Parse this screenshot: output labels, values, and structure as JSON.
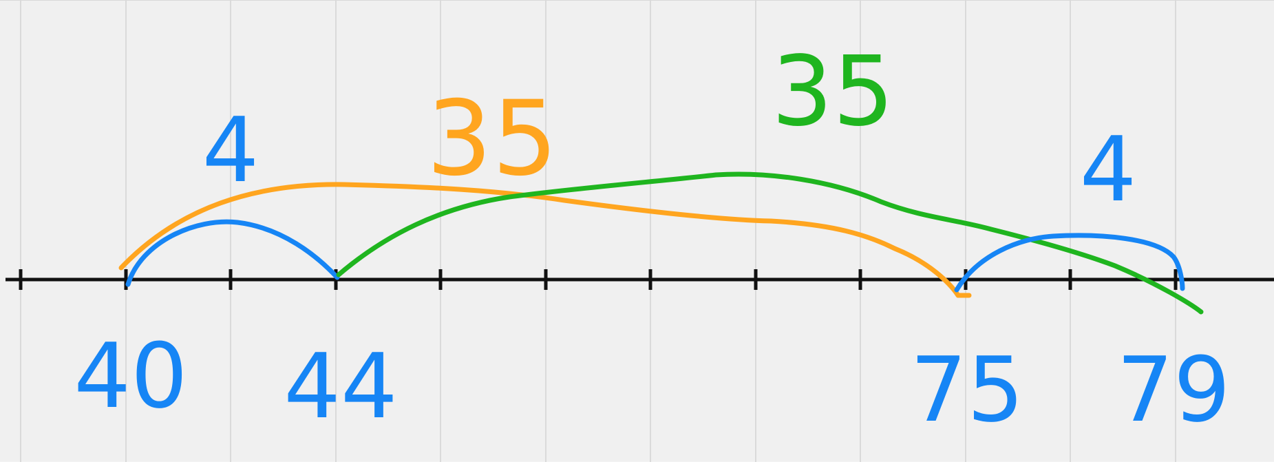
{
  "colors": {
    "background": "#f0f0f0",
    "grid": "#dadada",
    "axis": "#111111",
    "blue": "#1685f5",
    "orange": "#ffa51f",
    "green": "#1fb51f"
  },
  "number_line": {
    "labels": [
      "40",
      "44",
      "75",
      "79"
    ]
  },
  "jumps": [
    {
      "label": "4",
      "from": "40",
      "to": "44",
      "color": "blue"
    },
    {
      "label": "35",
      "from": "40",
      "to": "75",
      "color": "orange"
    },
    {
      "label": "35",
      "from": "44",
      "to": "79",
      "color": "green"
    },
    {
      "label": "4",
      "from": "75",
      "to": "79",
      "color": "blue"
    }
  ]
}
